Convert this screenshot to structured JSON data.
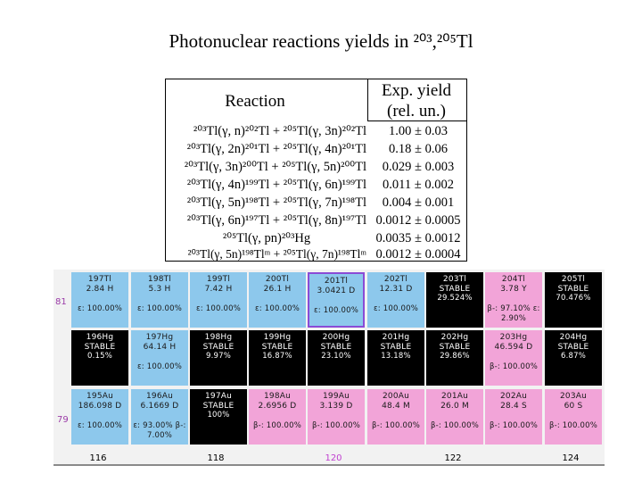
{
  "title": "Photonuclear reactions yields in ²⁰³,²⁰⁵Tl",
  "table": {
    "header_reaction": "Reaction",
    "header_yield": "Exp. yield (rel. un.)",
    "rows": [
      {
        "reaction": "²⁰³Tl(γ, n)²⁰²Tl + ²⁰⁵Tl(γ, 3n)²⁰²Tl",
        "yield": "1.00 ± 0.03"
      },
      {
        "reaction": "²⁰³Tl(γ, 2n)²⁰¹Tl + ²⁰⁵Tl(γ, 4n)²⁰¹Tl",
        "yield": "0.18 ± 0.06"
      },
      {
        "reaction": "²⁰³Tl(γ, 3n)²⁰⁰Tl + ²⁰⁵Tl(γ, 5n)²⁰⁰Tl",
        "yield": "0.029 ± 0.003"
      },
      {
        "reaction": "²⁰³Tl(γ, 4n)¹⁹⁹Tl + ²⁰⁵Tl(γ, 6n)¹⁹⁹Tl",
        "yield": "0.011 ± 0.002"
      },
      {
        "reaction": "²⁰³Tl(γ, 5n)¹⁹⁸Tl + ²⁰⁵Tl(γ, 7n)¹⁹⁸Tl",
        "yield": "0.004 ± 0.001"
      },
      {
        "reaction": "²⁰³Tl(γ, 6n)¹⁹⁷Tl + ²⁰⁵Tl(γ, 8n)¹⁹⁷Tl",
        "yield": "0.0012 ± 0.0005"
      },
      {
        "reaction": "²⁰⁵Tl(γ, pn)²⁰³Hg",
        "yield": "0.0035 ± 0.0012"
      },
      {
        "reaction": "²⁰³Tl(γ, 5n)¹⁹⁸Tlᵐ + ²⁰⁵Tl(γ, 7n)¹⁹⁸Tlᵐ",
        "yield": "0.0012 ± 0.0004"
      }
    ]
  },
  "nuclide_chart": {
    "z_labels": [
      "81",
      "79"
    ],
    "n_labels": [
      "116",
      "118",
      "120",
      "122",
      "124"
    ],
    "rows": [
      [
        {
          "name": "197Tl",
          "halflife": "2.84 H",
          "extra": "ε: 100.00%",
          "color": "blue"
        },
        {
          "name": "198Tl",
          "halflife": "5.3 H",
          "extra": "ε: 100.00%",
          "color": "blue"
        },
        {
          "name": "199Tl",
          "halflife": "7.42 H",
          "extra": "ε: 100.00%",
          "color": "blue"
        },
        {
          "name": "200Tl",
          "halflife": "26.1 H",
          "extra": "ε: 100.00%",
          "color": "blue"
        },
        {
          "name": "201Tl",
          "halflife": "3.0421 D",
          "extra": "ε: 100.00%",
          "color": "blue",
          "selected": true
        },
        {
          "name": "202Tl",
          "halflife": "12.31 D",
          "extra": "ε: 100.00%",
          "color": "blue"
        },
        {
          "name": "203Tl",
          "halflife": "STABLE",
          "extra": "29.524%",
          "color": "black"
        },
        {
          "name": "204Tl",
          "halflife": "3.78 Y",
          "extra": "β-: 97.10% ε: 2.90%",
          "color": "pink"
        },
        {
          "name": "205Tl",
          "halflife": "STABLE",
          "extra": "70.476%",
          "color": "black"
        }
      ],
      [
        {
          "name": "196Hg",
          "halflife": "STABLE",
          "extra": "0.15%",
          "color": "black"
        },
        {
          "name": "197Hg",
          "halflife": "64.14 H",
          "extra": "ε: 100.00%",
          "color": "blue"
        },
        {
          "name": "198Hg",
          "halflife": "STABLE",
          "extra": "9.97%",
          "color": "black"
        },
        {
          "name": "199Hg",
          "halflife": "STABLE",
          "extra": "16.87%",
          "color": "black"
        },
        {
          "name": "200Hg",
          "halflife": "STABLE",
          "extra": "23.10%",
          "color": "black"
        },
        {
          "name": "201Hg",
          "halflife": "STABLE",
          "extra": "13.18%",
          "color": "black"
        },
        {
          "name": "202Hg",
          "halflife": "STABLE",
          "extra": "29.86%",
          "color": "black"
        },
        {
          "name": "203Hg",
          "halflife": "46.594 D",
          "extra": "β-: 100.00%",
          "color": "pink"
        },
        {
          "name": "204Hg",
          "halflife": "STABLE",
          "extra": "6.87%",
          "color": "black"
        }
      ],
      [
        {
          "name": "195Au",
          "halflife": "186.098 D",
          "extra": "ε: 100.00%",
          "color": "blue"
        },
        {
          "name": "196Au",
          "halflife": "6.1669 D",
          "extra": "ε: 93.00% β-: 7.00%",
          "color": "blue"
        },
        {
          "name": "197Au",
          "halflife": "STABLE",
          "extra": "100%",
          "color": "black"
        },
        {
          "name": "198Au",
          "halflife": "2.6956 D",
          "extra": "β-: 100.00%",
          "color": "pink"
        },
        {
          "name": "199Au",
          "halflife": "3.139 D",
          "extra": "β-: 100.00%",
          "color": "pink"
        },
        {
          "name": "200Au",
          "halflife": "48.4 M",
          "extra": "β-: 100.00%",
          "color": "pink"
        },
        {
          "name": "201Au",
          "halflife": "26.0 M",
          "extra": "β-: 100.00%",
          "color": "pink"
        },
        {
          "name": "202Au",
          "halflife": "28.4 S",
          "extra": "β-: 100.00%",
          "color": "pink"
        },
        {
          "name": "203Au",
          "halflife": "60 S",
          "extra": "β-: 100.00%",
          "color": "pink"
        }
      ]
    ],
    "colors": {
      "blue": "#8dc8ec",
      "black": "#000000",
      "pink": "#f2a4d8",
      "z_label": "#9b3ca8",
      "highlight_n": "#c040d0"
    }
  }
}
